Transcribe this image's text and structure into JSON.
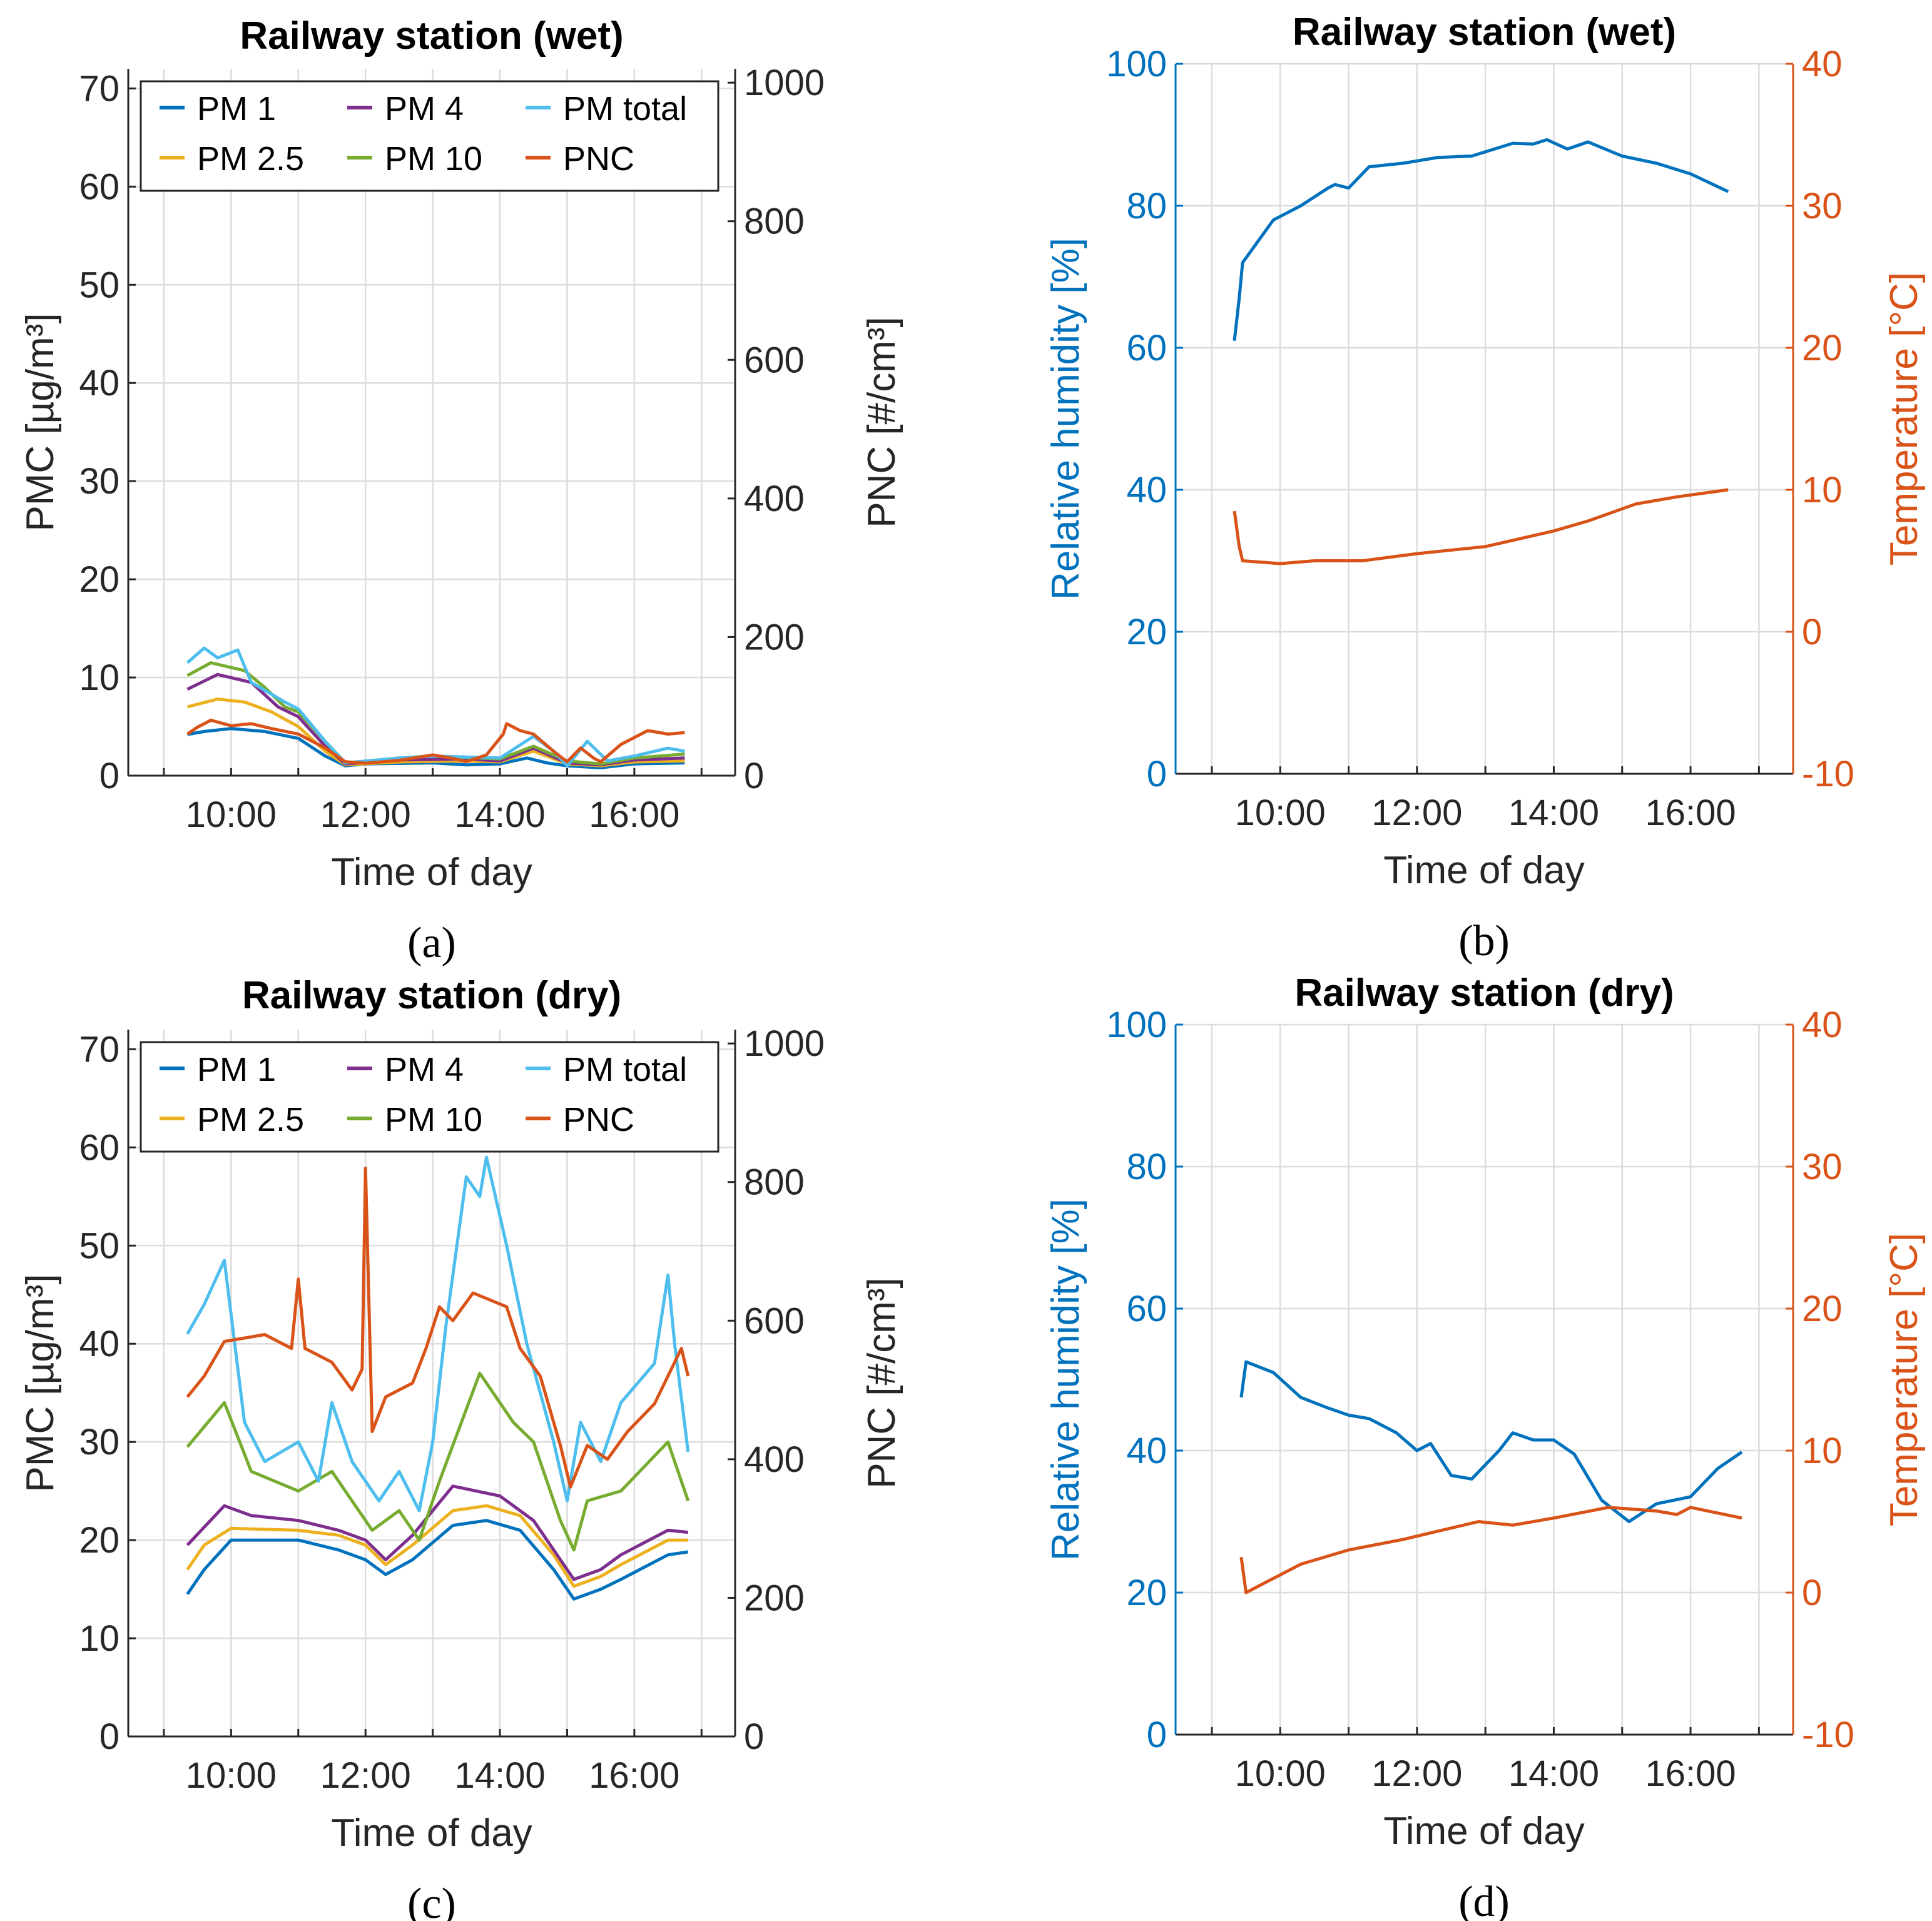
{
  "chart_data": [
    {
      "panel": "a",
      "type": "line",
      "title": "Railway station (wet)",
      "subfigure_label": "(a)",
      "xlabel": "Time of day",
      "ylabel_left": "PMC [µg/m³]",
      "ylabel_right": "PNC [#/cm³]",
      "xlim": [
        8.47,
        17.5
      ],
      "xticks": [
        "10:00",
        "12:00",
        "14:00",
        "16:00"
      ],
      "xtick_hours": [
        10,
        12,
        14,
        16
      ],
      "ylim_left": [
        0,
        72
      ],
      "yticks_left": [
        0,
        10,
        20,
        30,
        40,
        50,
        60,
        70
      ],
      "ylim_right": [
        0,
        1020
      ],
      "yticks_right": [
        0,
        200,
        400,
        600,
        800,
        1000
      ],
      "grid": true,
      "legend_position": "top",
      "series": [
        {
          "name": "PM 1",
          "axis": "left",
          "color": "#0072BD",
          "x": [
            9.35,
            9.6,
            10,
            10.5,
            11,
            11.4,
            11.7,
            12,
            13,
            13.5,
            14,
            14.4,
            14.7,
            15,
            15.5,
            16,
            16.75
          ],
          "y": [
            4.2,
            4.5,
            4.8,
            4.5,
            3.8,
            2.0,
            1.0,
            1.2,
            1.3,
            1.1,
            1.2,
            1.8,
            1.3,
            1.0,
            0.8,
            1.2,
            1.3
          ]
        },
        {
          "name": "PM 2.5",
          "axis": "left",
          "color": "#EDB120",
          "x": [
            9.35,
            9.8,
            10.2,
            10.6,
            11,
            11.4,
            11.7,
            12.5,
            13.5,
            14,
            14.5,
            15,
            15.5,
            16,
            16.75
          ],
          "y": [
            7,
            7.8,
            7.5,
            6.5,
            5,
            2.5,
            1.1,
            1.4,
            1.5,
            1.4,
            2.5,
            1.2,
            1.0,
            1.4,
            1.5
          ]
        },
        {
          "name": "PM 4",
          "axis": "left",
          "color": "#7E2F8E",
          "x": [
            9.35,
            9.8,
            10.3,
            10.7,
            11,
            11.4,
            11.7,
            12.5,
            13.5,
            14,
            14.5,
            15,
            15.5,
            16,
            16.75
          ],
          "y": [
            8.8,
            10.3,
            9.5,
            7,
            6,
            3,
            1.2,
            1.6,
            1.7,
            1.5,
            2.8,
            1.3,
            1.1,
            1.6,
            1.8
          ]
        },
        {
          "name": "PM 10",
          "axis": "left",
          "color": "#77AC30",
          "x": [
            9.35,
            9.7,
            10.2,
            10.5,
            10.8,
            11,
            11.4,
            11.7,
            12.5,
            13,
            14,
            14.5,
            15,
            15.5,
            16,
            16.75
          ],
          "y": [
            10.2,
            11.5,
            10.7,
            9,
            7,
            6.5,
            3.5,
            1.3,
            1.8,
            2,
            1.7,
            3,
            1.5,
            1.2,
            1.8,
            2.2
          ]
        },
        {
          "name": "PM total",
          "axis": "left",
          "color": "#4DBEEE",
          "x": [
            9.35,
            9.6,
            9.8,
            10.1,
            10.3,
            10.8,
            11,
            11.4,
            11.7,
            12.5,
            13,
            14,
            14.5,
            14.8,
            15,
            15.3,
            15.6,
            16,
            16.5,
            16.75
          ],
          "y": [
            11.5,
            13,
            12,
            12.8,
            9.5,
            7.5,
            6.8,
            3.5,
            1.3,
            1.8,
            2,
            1.8,
            4,
            2.5,
            1,
            3.5,
            1.5,
            2,
            2.8,
            2.5
          ]
        },
        {
          "name": "PNC",
          "axis": "right",
          "color": "#D95319",
          "x": [
            9.35,
            9.5,
            9.7,
            10,
            10.3,
            10.6,
            11,
            11.4,
            11.7,
            12,
            12.5,
            13,
            13.3,
            13.5,
            13.8,
            14.05,
            14.1,
            14.3,
            14.5,
            14.8,
            15,
            15.2,
            15.4,
            15.5,
            15.8,
            16.2,
            16.5,
            16.75
          ],
          "y": [
            60,
            70,
            80,
            72,
            75,
            68,
            60,
            40,
            20,
            18,
            22,
            30,
            25,
            20,
            30,
            60,
            75,
            65,
            60,
            35,
            20,
            40,
            25,
            20,
            45,
            65,
            60,
            62
          ]
        }
      ]
    },
    {
      "panel": "b",
      "type": "line",
      "title": "Railway station (wet)",
      "subfigure_label": "(b)",
      "xlabel": "Time of day",
      "ylabel_left": "Relative humidity [%]",
      "ylabel_right": "Temperature [°C]",
      "xlim": [
        8.47,
        17.5
      ],
      "xticks": [
        "10:00",
        "12:00",
        "14:00",
        "16:00"
      ],
      "xtick_hours": [
        10,
        12,
        14,
        16
      ],
      "ylim_left": [
        0,
        100
      ],
      "yticks_left": [
        0,
        20,
        40,
        60,
        80,
        100
      ],
      "ylim_right": [
        -10,
        40
      ],
      "yticks_right": [
        -10,
        0,
        10,
        20,
        30,
        40
      ],
      "left_color": "#0072BD",
      "right_color": "#D95319",
      "grid": true,
      "series": [
        {
          "name": "Relative humidity",
          "axis": "left",
          "color": "#0072BD",
          "x": [
            9.33,
            9.4,
            9.45,
            9.6,
            9.9,
            10.3,
            10.7,
            10.8,
            11,
            11.3,
            11.8,
            12.3,
            12.8,
            13.4,
            13.7,
            13.9,
            14.2,
            14.5,
            15,
            15.5,
            16,
            16.55
          ],
          "y": [
            61,
            67,
            72,
            74,
            78,
            80,
            82.5,
            83,
            82.5,
            85.5,
            86,
            86.8,
            87,
            88.8,
            88.7,
            89.3,
            88,
            89,
            87,
            86,
            84.5,
            82
          ]
        },
        {
          "name": "Temperature",
          "axis": "right",
          "color": "#D95319",
          "x": [
            9.33,
            9.4,
            9.45,
            10,
            10.5,
            11.2,
            12,
            13,
            14,
            14.5,
            15.2,
            15.8,
            16.55
          ],
          "y": [
            8.5,
            6,
            5,
            4.8,
            5,
            5,
            5.5,
            6,
            7.1,
            7.8,
            9,
            9.5,
            10
          ]
        }
      ]
    },
    {
      "panel": "c",
      "type": "line",
      "title": "Railway station (dry)",
      "subfigure_label": "(c)",
      "xlabel": "Time of day",
      "ylabel_left": "PMC [µg/m³]",
      "ylabel_right": "PNC [#/cm³]",
      "xlim": [
        8.47,
        17.5
      ],
      "xticks": [
        "10:00",
        "12:00",
        "14:00",
        "16:00"
      ],
      "xtick_hours": [
        10,
        12,
        14,
        16
      ],
      "ylim_left": [
        0,
        72
      ],
      "yticks_left": [
        0,
        10,
        20,
        30,
        40,
        50,
        60,
        70
      ],
      "ylim_right": [
        0,
        1020
      ],
      "yticks_right": [
        0,
        200,
        400,
        600,
        800,
        1000
      ],
      "grid": true,
      "legend_position": "top",
      "series": [
        {
          "name": "PM 1",
          "axis": "left",
          "color": "#0072BD",
          "x": [
            9.35,
            9.6,
            10,
            11,
            11.6,
            12,
            12.3,
            12.7,
            13.3,
            13.8,
            14.3,
            14.8,
            15.1,
            15.5,
            15.8,
            16.5,
            16.8
          ],
          "y": [
            14.5,
            17,
            20,
            20,
            19,
            18,
            16.5,
            18,
            21.5,
            22,
            21,
            17,
            14,
            15,
            16,
            18.5,
            18.8
          ]
        },
        {
          "name": "PM 2.5",
          "axis": "left",
          "color": "#EDB120",
          "x": [
            9.35,
            9.6,
            10,
            11,
            11.6,
            12,
            12.3,
            12.7,
            13.3,
            13.8,
            14.3,
            14.8,
            15.1,
            15.5,
            15.8,
            16.5,
            16.8
          ],
          "y": [
            17,
            19.5,
            21.2,
            21,
            20.5,
            19.5,
            17.5,
            19.5,
            23,
            23.5,
            22.5,
            18.5,
            15.3,
            16.3,
            17.5,
            20,
            20
          ]
        },
        {
          "name": "PM 4",
          "axis": "left",
          "color": "#7E2F8E",
          "x": [
            9.35,
            9.9,
            10.3,
            11,
            11.6,
            12,
            12.3,
            12.7,
            13.3,
            14,
            14.5,
            14.8,
            15.1,
            15.5,
            15.8,
            16.5,
            16.8
          ],
          "y": [
            19.5,
            23.5,
            22.5,
            22,
            21,
            20,
            18,
            20.5,
            25.5,
            24.5,
            22,
            19,
            16,
            17,
            18.5,
            21,
            20.8
          ]
        },
        {
          "name": "PM 10",
          "axis": "left",
          "color": "#77AC30",
          "x": [
            9.35,
            9.9,
            10.3,
            11,
            11.5,
            12.1,
            12.5,
            12.8,
            13.1,
            13.7,
            14.2,
            14.5,
            14.9,
            15.1,
            15.3,
            15.8,
            16.5,
            16.8
          ],
          "y": [
            29.5,
            34,
            27,
            25,
            27,
            21,
            23,
            20,
            26,
            37,
            32,
            30,
            22,
            19,
            24,
            25,
            30,
            24
          ]
        },
        {
          "name": "PM total",
          "axis": "left",
          "color": "#4DBEEE",
          "x": [
            9.35,
            9.6,
            9.9,
            10.2,
            10.5,
            11,
            11.3,
            11.5,
            11.8,
            12.2,
            12.5,
            12.8,
            13.0,
            13.2,
            13.5,
            13.7,
            13.8,
            14.1,
            14.4,
            14.8,
            15.0,
            15.2,
            15.5,
            15.8,
            16.3,
            16.5,
            16.6,
            16.8
          ],
          "y": [
            41,
            44,
            48.5,
            32,
            28,
            30,
            26,
            34,
            28,
            24,
            27,
            23,
            30,
            42,
            57,
            55,
            59,
            50,
            40,
            30,
            24,
            32,
            28,
            34,
            38,
            47,
            40,
            29
          ]
        },
        {
          "name": "PNC",
          "axis": "right",
          "color": "#D95319",
          "x": [
            9.35,
            9.6,
            9.9,
            10.5,
            10.9,
            11.0,
            11.1,
            11.5,
            11.8,
            11.95,
            12.0,
            12.1,
            12.3,
            12.7,
            12.9,
            13.1,
            13.3,
            13.6,
            14.1,
            14.3,
            14.6,
            14.9,
            15.05,
            15.3,
            15.6,
            15.9,
            16.3,
            16.7,
            16.8
          ],
          "y": [
            490,
            520,
            570,
            580,
            560,
            660,
            560,
            540,
            500,
            530,
            820,
            440,
            490,
            510,
            560,
            620,
            600,
            640,
            620,
            560,
            520,
            420,
            360,
            420,
            400,
            440,
            480,
            560,
            520
          ]
        }
      ]
    },
    {
      "panel": "d",
      "type": "line",
      "title": "Railway station (dry)",
      "subfigure_label": "(d)",
      "xlabel": "Time of day",
      "ylabel_left": "Relative humidity [%]",
      "ylabel_right": "Temperature [°C]",
      "xlim": [
        8.47,
        17.5
      ],
      "xticks": [
        "10:00",
        "12:00",
        "14:00",
        "16:00"
      ],
      "xtick_hours": [
        10,
        12,
        14,
        16
      ],
      "ylim_left": [
        0,
        100
      ],
      "yticks_left": [
        0,
        20,
        40,
        60,
        80,
        100
      ],
      "ylim_right": [
        -10,
        40
      ],
      "yticks_right": [
        -10,
        0,
        10,
        20,
        30,
        40
      ],
      "left_color": "#0072BD",
      "right_color": "#D95319",
      "grid": true,
      "series": [
        {
          "name": "Relative humidity",
          "axis": "left",
          "color": "#0072BD",
          "x": [
            9.43,
            9.5,
            9.9,
            10.3,
            10.7,
            11,
            11.3,
            11.7,
            12,
            12.2,
            12.5,
            12.8,
            13.2,
            13.4,
            13.7,
            14,
            14.3,
            14.7,
            15.1,
            15.5,
            16,
            16.4,
            16.75
          ],
          "y": [
            47.5,
            52.5,
            51,
            47.5,
            46,
            45,
            44.5,
            42.5,
            40,
            41,
            36.5,
            36,
            40,
            42.5,
            41.5,
            41.5,
            39.5,
            33,
            30,
            32.5,
            33.5,
            37.5,
            39.8
          ]
        },
        {
          "name": "Temperature",
          "axis": "right",
          "color": "#D95319",
          "x": [
            9.43,
            9.5,
            10.3,
            11,
            11.8,
            12.9,
            13.4,
            14,
            14.8,
            15.5,
            15.8,
            16,
            16.75
          ],
          "y": [
            2.5,
            0,
            2,
            3,
            3.75,
            5,
            4.75,
            5.25,
            6,
            5.75,
            5.5,
            6,
            5.25
          ]
        }
      ]
    }
  ]
}
